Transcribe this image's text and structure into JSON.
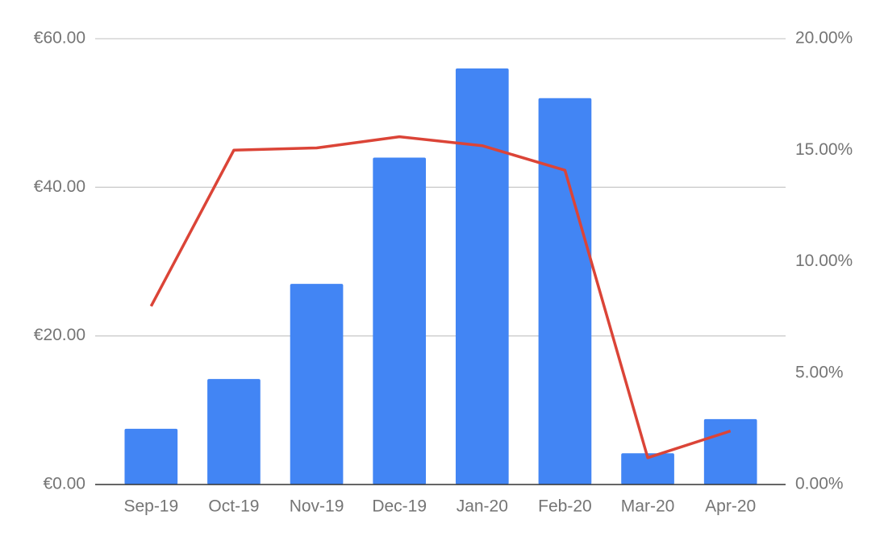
{
  "chart_data": {
    "type": "bar-line",
    "categories": [
      "Sep-19",
      "Oct-19",
      "Nov-19",
      "Dec-19",
      "Jan-20",
      "Feb-20",
      "Mar-20",
      "Apr-20"
    ],
    "series": [
      {
        "type": "bar",
        "color": "#4285f4",
        "values": [
          7.5,
          14.2,
          27.0,
          44.0,
          56.0,
          52.0,
          4.2,
          8.8
        ]
      },
      {
        "type": "line",
        "axis": "y2",
        "color": "#db4437",
        "values": [
          8.0,
          15.0,
          15.1,
          15.6,
          15.2,
          14.1,
          1.2,
          2.4
        ]
      }
    ],
    "ylim": [
      0,
      60
    ],
    "yticks": [
      {
        "value": 0,
        "label": "€0.00"
      },
      {
        "value": 20,
        "label": "€20.00"
      },
      {
        "value": 40,
        "label": "€40.00"
      },
      {
        "value": 60,
        "label": "€60.00"
      }
    ],
    "y2lim": [
      0,
      20
    ],
    "y2ticks": [
      {
        "value": 0,
        "label": "0.00%"
      },
      {
        "value": 5,
        "label": "5.00%"
      },
      {
        "value": 10,
        "label": "10.00%"
      },
      {
        "value": 15,
        "label": "15.00%"
      },
      {
        "value": 20,
        "label": "20.00%"
      }
    ],
    "grid": true
  }
}
